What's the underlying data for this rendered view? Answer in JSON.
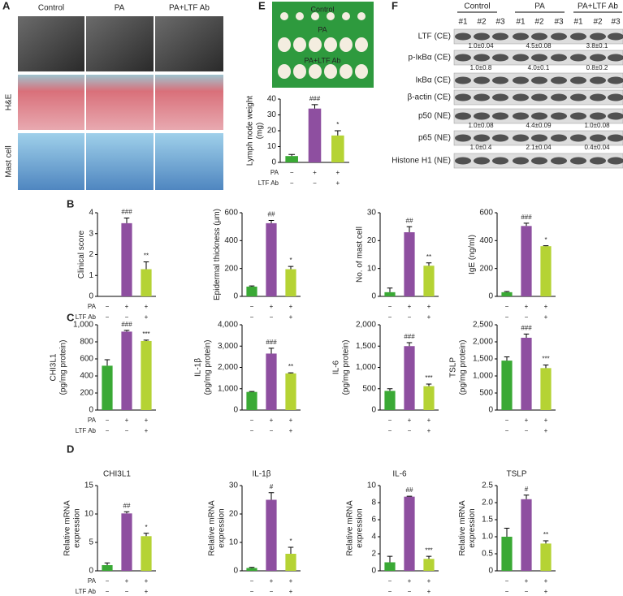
{
  "panel_letters": [
    "A",
    "B",
    "C",
    "D",
    "E",
    "F"
  ],
  "panel_a": {
    "columns": [
      "Control",
      "PA",
      "PA+LTF Ab"
    ],
    "rows": [
      "H&E",
      "Mast cell"
    ]
  },
  "panel_e_photo": {
    "labels": [
      "Control",
      "PA",
      "PA+LTF Ab"
    ]
  },
  "panel_f": {
    "groups": [
      "Control",
      "PA",
      "PA+LTF Ab"
    ],
    "lanes": [
      "#1",
      "#2",
      "#3",
      "#1",
      "#2",
      "#3",
      "#1",
      "#2",
      "#3"
    ],
    "blots": [
      {
        "name": "LTF (CE)",
        "quant": [
          "1.0±0.04",
          "4.5±0.08",
          "3.8±0.1"
        ]
      },
      {
        "name": "p-IκBα (CE)",
        "quant": [
          "1.0±0.8",
          "4.0±0.1",
          "0.8±0.2"
        ]
      },
      {
        "name": "IκBα (CE)"
      },
      {
        "name": "β-actin (CE)"
      },
      {
        "name": "p50 (NE)",
        "quant": [
          "1.0±0.08",
          "4.4±0.09",
          "1.0±0.08"
        ]
      },
      {
        "name": "p65 (NE)",
        "quant": [
          "1.0±0.4",
          "2.1±0.04",
          "0.4±0.04"
        ]
      },
      {
        "name": "Histone H1 (NE)"
      }
    ]
  },
  "chart_data": [
    {
      "type": "bar",
      "ylabel": [
        "Lymph node weight",
        "(mg)"
      ],
      "ylim": [
        0,
        40
      ],
      "yticks": [
        0,
        10,
        20,
        30,
        40
      ],
      "values": [
        4,
        34,
        17
      ],
      "errors": [
        1,
        2.5,
        3
      ],
      "annotations": [
        null,
        "###",
        "*"
      ],
      "colors": [
        "#3aa935",
        "#8e4fa0",
        "#b5d334"
      ],
      "condition_names": [
        "PA",
        "LTF Ab"
      ],
      "condition_marks": [
        [
          "−",
          "+",
          "+"
        ],
        [
          "−",
          "−",
          "+"
        ]
      ]
    },
    {
      "type": "bar",
      "ylabel": [
        "Clinical score"
      ],
      "ylim": [
        0,
        4
      ],
      "yticks": [
        0,
        1,
        2,
        3,
        4
      ],
      "values": [
        0,
        3.5,
        1.3
      ],
      "errors": [
        0,
        0.25,
        0.35
      ],
      "annotations": [
        null,
        "###",
        "**"
      ],
      "colors": [
        "#3aa935",
        "#8e4fa0",
        "#b5d334"
      ],
      "condition_names": [
        "PA",
        "LTF Ab"
      ],
      "condition_marks": [
        [
          "−",
          "+",
          "+"
        ],
        [
          "−",
          "−",
          "+"
        ]
      ]
    },
    {
      "type": "bar",
      "ylabel": [
        "Epidermal thickness (μm)"
      ],
      "ylim": [
        0,
        600
      ],
      "yticks": [
        0,
        200,
        400,
        600
      ],
      "values": [
        70,
        525,
        195
      ],
      "errors": [
        5,
        20,
        20
      ],
      "annotations": [
        null,
        "##",
        "*"
      ],
      "colors": [
        "#3aa935",
        "#8e4fa0",
        "#b5d334"
      ],
      "condition_marks": [
        [
          "−",
          "+",
          "+"
        ],
        [
          "−",
          "−",
          "+"
        ]
      ]
    },
    {
      "type": "bar",
      "ylabel": [
        "No. of mast cell"
      ],
      "ylim": [
        0,
        30
      ],
      "yticks": [
        0,
        10,
        20,
        30
      ],
      "values": [
        1.5,
        23,
        11
      ],
      "errors": [
        1.5,
        2,
        1
      ],
      "annotations": [
        null,
        "##",
        "**"
      ],
      "colors": [
        "#3aa935",
        "#8e4fa0",
        "#b5d334"
      ],
      "condition_marks": [
        [
          "−",
          "+",
          "+"
        ],
        [
          "−",
          "−",
          "+"
        ]
      ]
    },
    {
      "type": "bar",
      "ylabel": [
        "IgE (ng/ml)"
      ],
      "ylim": [
        0,
        600
      ],
      "yticks": [
        0,
        200,
        400,
        600
      ],
      "values": [
        30,
        505,
        360
      ],
      "errors": [
        5,
        20,
        3
      ],
      "annotations": [
        null,
        "###",
        "*"
      ],
      "colors": [
        "#3aa935",
        "#8e4fa0",
        "#b5d334"
      ],
      "condition_marks": [
        [
          "−",
          "+",
          "+"
        ],
        [
          "−",
          "−",
          "+"
        ]
      ]
    },
    {
      "type": "bar",
      "ylabel": [
        "CHI3L1",
        "(pg/mg protein)"
      ],
      "ylim": [
        0,
        1000
      ],
      "yticks": [
        0,
        200,
        400,
        600,
        800,
        {
          "value": 1000,
          "label": "1,000"
        }
      ],
      "values": [
        520,
        920,
        810
      ],
      "errors": [
        70,
        15,
        10
      ],
      "annotations": [
        null,
        "###",
        "***"
      ],
      "colors": [
        "#3aa935",
        "#8e4fa0",
        "#b5d334"
      ],
      "condition_names": [
        "PA",
        "LTF Ab"
      ],
      "condition_marks": [
        [
          "−",
          "+",
          "+"
        ],
        [
          "−",
          "−",
          "+"
        ]
      ]
    },
    {
      "type": "bar",
      "ylabel": [
        "IL-1β",
        "(pg/mg protein)"
      ],
      "ylim": [
        0,
        4000
      ],
      "yticks": [
        0,
        {
          "value": 1000,
          "label": "1,000"
        },
        {
          "value": 2000,
          "label": "2,000"
        },
        {
          "value": 3000,
          "label": "3,000"
        },
        {
          "value": 4000,
          "label": "4,000"
        }
      ],
      "values": [
        850,
        2650,
        1720
      ],
      "errors": [
        20,
        250,
        30
      ],
      "annotations": [
        null,
        "###",
        "**"
      ],
      "colors": [
        "#3aa935",
        "#8e4fa0",
        "#b5d334"
      ],
      "condition_marks": [
        [
          "−",
          "+",
          "+"
        ],
        [
          "−",
          "−",
          "+"
        ]
      ]
    },
    {
      "type": "bar",
      "ylabel": [
        "IL-6",
        "(pg/mg protein)"
      ],
      "ylim": [
        0,
        2000
      ],
      "yticks": [
        0,
        500,
        {
          "value": 1000,
          "label": "1,000"
        },
        {
          "value": 1500,
          "label": "1,500"
        },
        {
          "value": 2000,
          "label": "2,000"
        }
      ],
      "values": [
        450,
        1500,
        560
      ],
      "errors": [
        50,
        80,
        50
      ],
      "annotations": [
        null,
        "###",
        "***"
      ],
      "colors": [
        "#3aa935",
        "#8e4fa0",
        "#b5d334"
      ],
      "condition_marks": [
        [
          "−",
          "+",
          "+"
        ],
        [
          "−",
          "−",
          "+"
        ]
      ]
    },
    {
      "type": "bar",
      "ylabel": [
        "TSLP",
        "(pg/mg protein)"
      ],
      "ylim": [
        0,
        2500
      ],
      "yticks": [
        0,
        500,
        {
          "value": 1000,
          "label": "1,000"
        },
        {
          "value": 1500,
          "label": "1,500"
        },
        {
          "value": 2000,
          "label": "2,000"
        },
        {
          "value": 2500,
          "label": "2,500"
        }
      ],
      "values": [
        1450,
        2120,
        1230
      ],
      "errors": [
        110,
        110,
        90
      ],
      "annotations": [
        null,
        "###",
        "***"
      ],
      "colors": [
        "#3aa935",
        "#8e4fa0",
        "#b5d334"
      ],
      "condition_marks": [
        [
          "−",
          "+",
          "+"
        ],
        [
          "−",
          "−",
          "+"
        ]
      ]
    },
    {
      "type": "bar",
      "title": "CHI3L1",
      "ylabel": [
        "Relative mRNA",
        "expression"
      ],
      "ylim": [
        0,
        15
      ],
      "yticks": [
        0,
        5,
        10,
        15
      ],
      "values": [
        1,
        10.1,
        6.1
      ],
      "errors": [
        0.4,
        0.3,
        0.5
      ],
      "annotations": [
        null,
        "##",
        "*"
      ],
      "colors": [
        "#3aa935",
        "#8e4fa0",
        "#b5d334"
      ],
      "condition_names": [
        "PA",
        "LTF Ab"
      ],
      "condition_marks": [
        [
          "−",
          "+",
          "+"
        ],
        [
          "−",
          "−",
          "+"
        ]
      ]
    },
    {
      "type": "bar",
      "title": "IL-1β",
      "ylabel": [
        "Relative mRNA",
        "expression"
      ],
      "ylim": [
        0,
        30
      ],
      "yticks": [
        0,
        10,
        20,
        30
      ],
      "values": [
        1,
        25,
        6
      ],
      "errors": [
        0.2,
        2.5,
        2.3
      ],
      "annotations": [
        null,
        "#",
        "*"
      ],
      "colors": [
        "#3aa935",
        "#8e4fa0",
        "#b5d334"
      ],
      "condition_marks": [
        [
          "−",
          "+",
          "+"
        ],
        [
          "−",
          "−",
          "+"
        ]
      ]
    },
    {
      "type": "bar",
      "title": "IL-6",
      "ylabel": [
        "Relative mRNA",
        "expression"
      ],
      "ylim": [
        0,
        10
      ],
      "yticks": [
        0,
        2,
        4,
        6,
        8,
        10
      ],
      "values": [
        1,
        8.7,
        1.4
      ],
      "errors": [
        0.7,
        0.05,
        0.3
      ],
      "annotations": [
        null,
        "##",
        "***"
      ],
      "colors": [
        "#3aa935",
        "#8e4fa0",
        "#b5d334"
      ],
      "condition_marks": [
        [
          "−",
          "+",
          "+"
        ],
        [
          "−",
          "−",
          "+"
        ]
      ]
    },
    {
      "type": "bar",
      "title": "TSLP",
      "ylabel": [
        "Relative mRNA",
        "expression"
      ],
      "ylim": [
        0,
        2.5
      ],
      "yticks": [
        0,
        0.5,
        {
          "value": 1,
          "label": "1.0"
        },
        1.5,
        {
          "value": 2,
          "label": "2.0"
        },
        2.5
      ],
      "values": [
        1.0,
        2.1,
        0.8
      ],
      "errors": [
        0.25,
        0.12,
        0.08
      ],
      "annotations": [
        null,
        "#",
        "**"
      ],
      "colors": [
        "#3aa935",
        "#8e4fa0",
        "#b5d334"
      ],
      "condition_marks": [
        [
          "−",
          "+",
          "+"
        ],
        [
          "−",
          "−",
          "+"
        ]
      ]
    }
  ]
}
